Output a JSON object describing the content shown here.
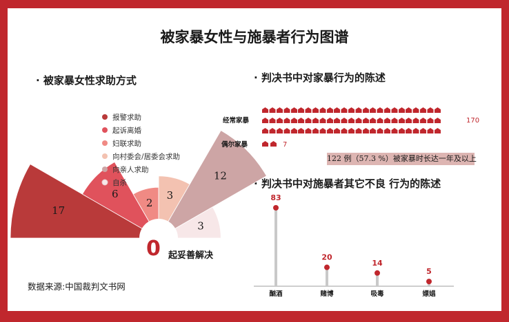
{
  "title": "被家暴女性与施暴者行为图谱",
  "source": "数据来源:中国裁判文书网",
  "help": {
    "section_title": "·  被家暴女性求助方式",
    "zero_value": "0",
    "zero_caption": "起妥善解决",
    "chart_data": {
      "type": "pie",
      "subtype": "polar-area (half rose)",
      "categories": [
        "报警求助",
        "起诉离婚",
        "妇联求助",
        "向村委会/居委会求助",
        "向亲人求助",
        "自杀"
      ],
      "values": [
        17,
        6,
        2,
        3,
        12,
        3
      ],
      "colors": [
        "#b93a3a",
        "#e0525c",
        "#f08a84",
        "#f3c2b1",
        "#cda5a5",
        "#f7e7e8"
      ],
      "legend_position": "upper-center"
    }
  },
  "statements": {
    "section_title": "·  判决书中对家暴行为的陈述",
    "note": "122 例（57.3 %）被家暴时长达一年及以上",
    "chart_data": {
      "type": "bar",
      "subtype": "pictogram",
      "categories": [
        "经常家暴",
        "偶尔家暴"
      ],
      "values": [
        170,
        7
      ],
      "color": "#c0272d"
    }
  },
  "abuser": {
    "section_title": "·  判决书中对施暴者其它不良 行为的陈述",
    "chart_data": {
      "type": "bar",
      "subtype": "lollipop",
      "categories": [
        "酗酒",
        "赌博",
        "吸毒",
        "嫖娼"
      ],
      "values": [
        83,
        20,
        14,
        5
      ],
      "ylim": [
        0,
        83
      ],
      "color": "#c0272d"
    }
  }
}
